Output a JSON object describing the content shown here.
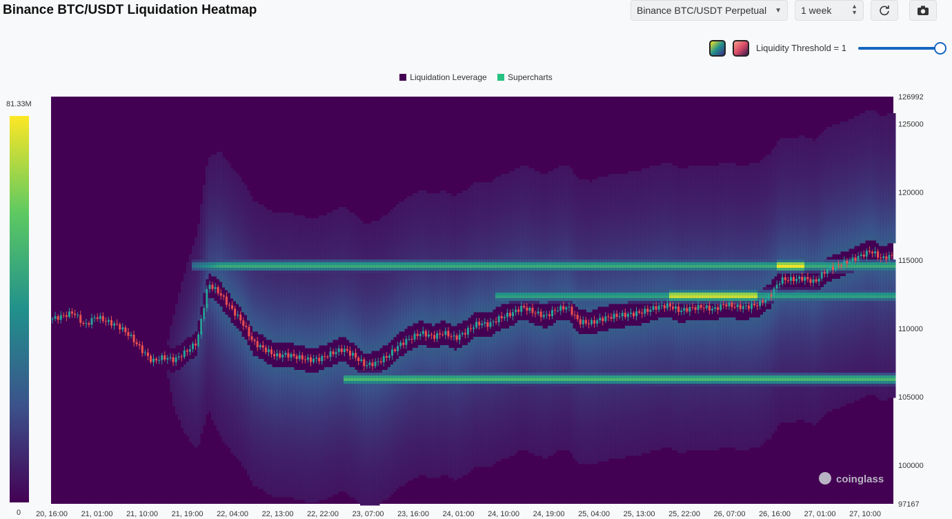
{
  "title": "Binance BTC/USDT Liquidation Heatmap",
  "toolbar": {
    "pair_select": "Binance BTC/USDT Perpetual",
    "range_select": "1 week",
    "refresh_icon": "refresh-icon",
    "camera_icon": "camera-icon"
  },
  "threshold": {
    "label": "Liquidity Threshold = 1",
    "value": 1
  },
  "watermark": "coinglass",
  "colors": {
    "heat_low": "#440154",
    "heat_mid": "#21918c",
    "heat_high": "#fde725",
    "candle_up": "#26a69a",
    "candle_down": "#ef5350",
    "slider": "#1565c0"
  },
  "chart_data": {
    "type": "heatmap",
    "legend": [
      {
        "name": "Liquidation Leverage",
        "color": "#440154"
      },
      {
        "name": "Supercharts",
        "color": "#26c281"
      }
    ],
    "colorbar": {
      "max_label": "81.33M",
      "min_label": "0",
      "max": 81330000,
      "min": 0
    },
    "ylim": [
      97167,
      126992
    ],
    "y_ticks": [
      {
        "value": 126992,
        "label": "126992"
      },
      {
        "value": 125000,
        "label": "125000"
      },
      {
        "value": 120000,
        "label": "120000"
      },
      {
        "value": 115000,
        "label": "115000"
      },
      {
        "value": 110000,
        "label": "110000"
      },
      {
        "value": 105000,
        "label": "105000"
      },
      {
        "value": 100000,
        "label": "100000"
      },
      {
        "value": 97167,
        "label": "97167"
      }
    ],
    "x_ticks": [
      "20, 16:00",
      "21, 01:00",
      "21, 10:00",
      "21, 19:00",
      "22, 04:00",
      "22, 13:00",
      "22, 22:00",
      "23, 07:00",
      "23, 16:00",
      "24, 01:00",
      "24, 10:00",
      "24, 19:00",
      "25, 04:00",
      "25, 13:00",
      "25, 22:00",
      "26, 07:00",
      "26, 16:00",
      "27, 01:00",
      "27, 10:00"
    ],
    "price_path": [
      [
        0,
        110700
      ],
      [
        2,
        110900
      ],
      [
        4,
        111200
      ],
      [
        6,
        110200
      ],
      [
        8,
        110900
      ],
      [
        10,
        110500
      ],
      [
        12,
        110200
      ],
      [
        14,
        109500
      ],
      [
        16,
        108500
      ],
      [
        18,
        107600
      ],
      [
        20,
        107900
      ],
      [
        22,
        107700
      ],
      [
        24,
        108300
      ],
      [
        26,
        109000
      ],
      [
        28,
        113300
      ],
      [
        30,
        112600
      ],
      [
        32,
        111500
      ],
      [
        34,
        110500
      ],
      [
        36,
        109000
      ],
      [
        38,
        108500
      ],
      [
        40,
        108000
      ],
      [
        42,
        108100
      ],
      [
        44,
        107900
      ],
      [
        46,
        107700
      ],
      [
        48,
        107800
      ],
      [
        50,
        108200
      ],
      [
        52,
        108500
      ],
      [
        54,
        108000
      ],
      [
        56,
        107300
      ],
      [
        58,
        107500
      ],
      [
        60,
        108000
      ],
      [
        62,
        108800
      ],
      [
        64,
        109300
      ],
      [
        66,
        109700
      ],
      [
        68,
        109400
      ],
      [
        70,
        109700
      ],
      [
        72,
        109300
      ],
      [
        74,
        109800
      ],
      [
        76,
        110400
      ],
      [
        78,
        110300
      ],
      [
        80,
        110800
      ],
      [
        82,
        111100
      ],
      [
        84,
        111600
      ],
      [
        86,
        111200
      ],
      [
        88,
        110900
      ],
      [
        90,
        111400
      ],
      [
        92,
        111600
      ],
      [
        94,
        110500
      ],
      [
        96,
        110400
      ],
      [
        98,
        110700
      ],
      [
        100,
        110900
      ],
      [
        102,
        111000
      ],
      [
        104,
        111100
      ],
      [
        106,
        111300
      ],
      [
        108,
        111600
      ],
      [
        110,
        111700
      ],
      [
        112,
        111300
      ],
      [
        114,
        111500
      ],
      [
        116,
        111600
      ],
      [
        118,
        111400
      ],
      [
        120,
        111800
      ],
      [
        122,
        111600
      ],
      [
        124,
        111600
      ],
      [
        126,
        111800
      ],
      [
        128,
        112400
      ],
      [
        130,
        113600
      ],
      [
        132,
        113600
      ],
      [
        134,
        113700
      ],
      [
        136,
        113400
      ],
      [
        138,
        114300
      ],
      [
        140,
        114600
      ],
      [
        142,
        114900
      ],
      [
        144,
        115300
      ],
      [
        146,
        115700
      ],
      [
        148,
        115100
      ],
      [
        149,
        115300
      ]
    ],
    "liquidation_bands": [
      {
        "price": 114600,
        "start_h": 25,
        "intensity": 0.62
      },
      {
        "price": 112400,
        "start_h": 79,
        "intensity": 0.58
      },
      {
        "price": 106300,
        "start_h": 52,
        "intensity": 0.68
      },
      {
        "price": 114600,
        "start_h": 129,
        "end_h": 134,
        "intensity": 1.0
      },
      {
        "price": 112400,
        "start_h": 110,
        "end_h": 126,
        "intensity": 0.95
      }
    ]
  }
}
